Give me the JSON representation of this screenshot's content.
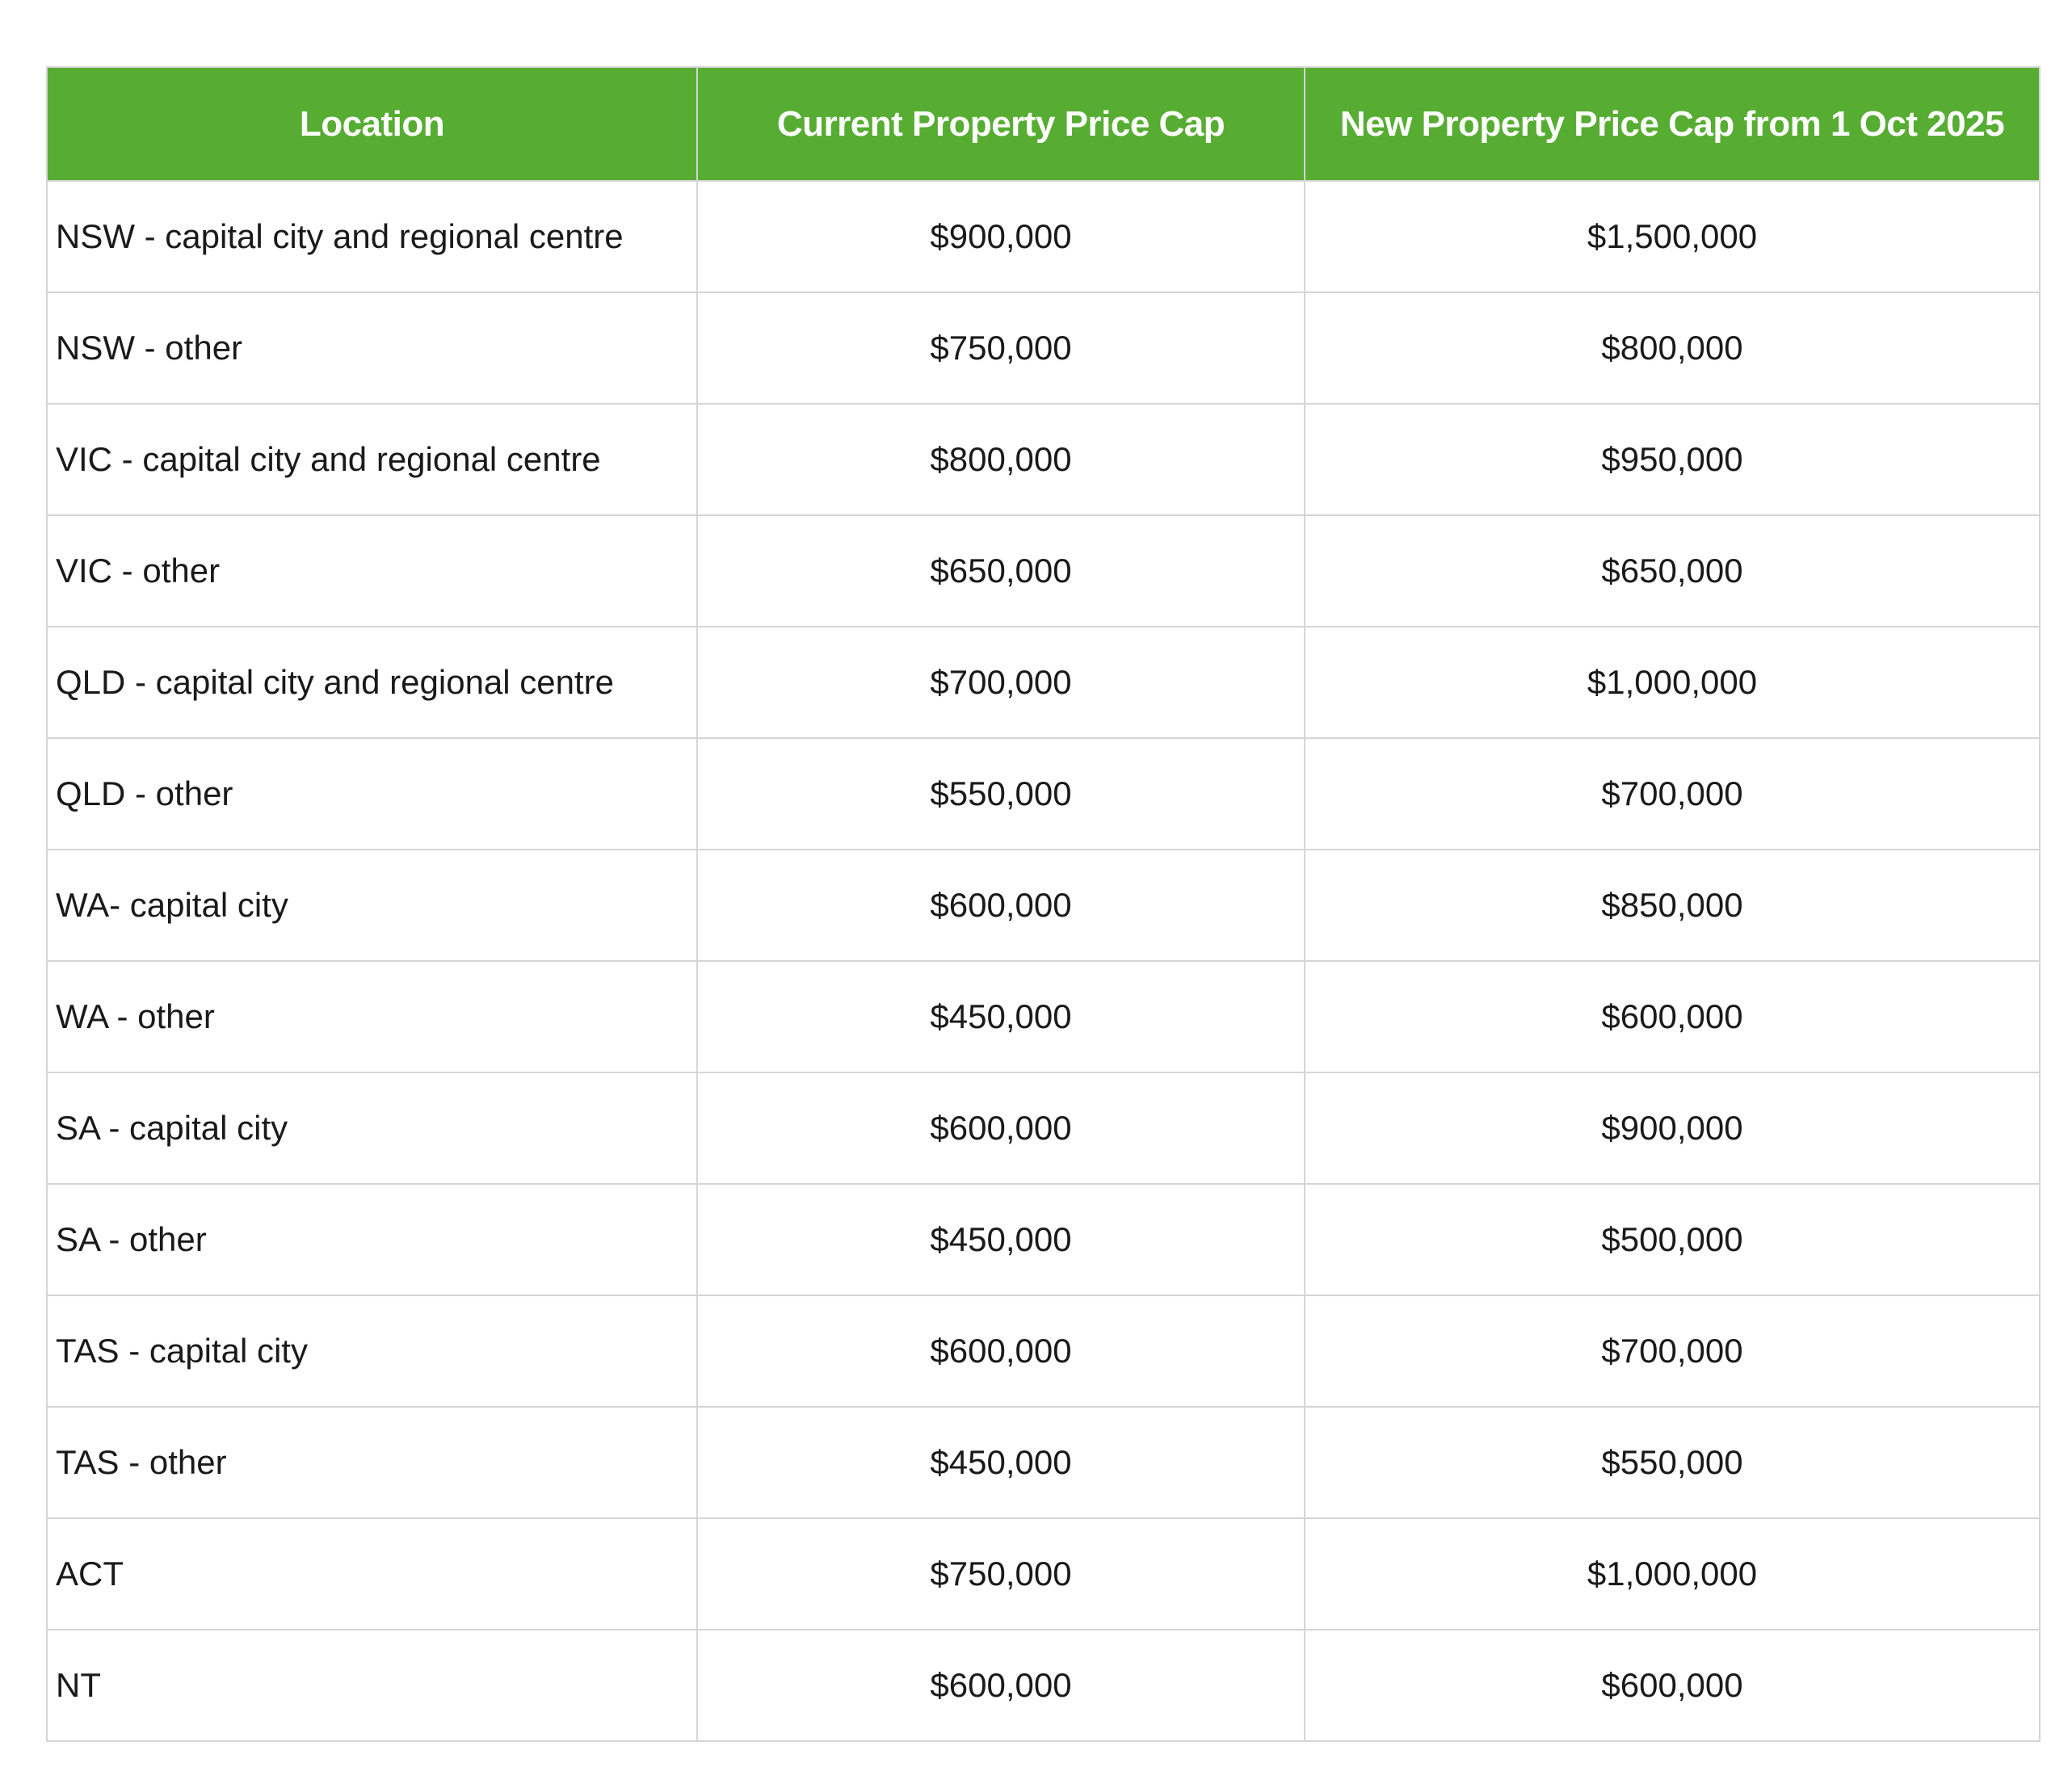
{
  "table": {
    "headers": {
      "location": "Location",
      "current": "Current Property Price Cap",
      "new": "New Property Price Cap from 1 Oct 2025"
    },
    "rows": [
      {
        "location": "NSW - capital city and regional centre",
        "current": "$900,000",
        "new": "$1,500,000"
      },
      {
        "location": "NSW - other",
        "current": "$750,000",
        "new": "$800,000"
      },
      {
        "location": "VIC - capital city and regional centre",
        "current": "$800,000",
        "new": "$950,000"
      },
      {
        "location": "VIC - other",
        "current": "$650,000",
        "new": "$650,000"
      },
      {
        "location": "QLD - capital city and regional centre",
        "current": "$700,000",
        "new": "$1,000,000"
      },
      {
        "location": "QLD - other",
        "current": "$550,000",
        "new": "$700,000"
      },
      {
        "location": "WA- capital city",
        "current": "$600,000",
        "new": "$850,000"
      },
      {
        "location": "WA - other",
        "current": "$450,000",
        "new": "$600,000"
      },
      {
        "location": "SA - capital city",
        "current": "$600,000",
        "new": "$900,000"
      },
      {
        "location": "SA - other",
        "current": "$450,000",
        "new": "$500,000"
      },
      {
        "location": "TAS - capital city",
        "current": "$600,000",
        "new": "$700,000"
      },
      {
        "location": "TAS - other",
        "current": "$450,000",
        "new": "$550,000"
      },
      {
        "location": "ACT",
        "current": "$750,000",
        "new": "$1,000,000"
      },
      {
        "location": "NT",
        "current": "$600,000",
        "new": "$600,000"
      }
    ]
  },
  "chart_data": {
    "type": "table",
    "title": "",
    "columns": [
      "Location",
      "Current Property Price Cap",
      "New Property Price Cap from 1 Oct 2025"
    ],
    "rows": [
      [
        "NSW - capital city and regional centre",
        900000,
        1500000
      ],
      [
        "NSW - other",
        750000,
        800000
      ],
      [
        "VIC - capital city and regional centre",
        800000,
        950000
      ],
      [
        "VIC - other",
        650000,
        650000
      ],
      [
        "QLD - capital city and regional centre",
        700000,
        1000000
      ],
      [
        "QLD - other",
        550000,
        700000
      ],
      [
        "WA- capital city",
        600000,
        850000
      ],
      [
        "WA - other",
        450000,
        600000
      ],
      [
        "SA - capital city",
        600000,
        900000
      ],
      [
        "SA - other",
        450000,
        500000
      ],
      [
        "TAS - capital city",
        600000,
        700000
      ],
      [
        "TAS - other",
        450000,
        550000
      ],
      [
        "ACT",
        750000,
        1000000
      ],
      [
        "NT",
        600000,
        600000
      ]
    ],
    "value_format": "$#,##0",
    "legend_position": "none",
    "grid": true
  },
  "colors": {
    "header_bg": "#56ad32",
    "header_text": "#ffffff",
    "body_text": "#1a1a1a",
    "border": "#d5d5d5",
    "background": "#ffffff"
  }
}
